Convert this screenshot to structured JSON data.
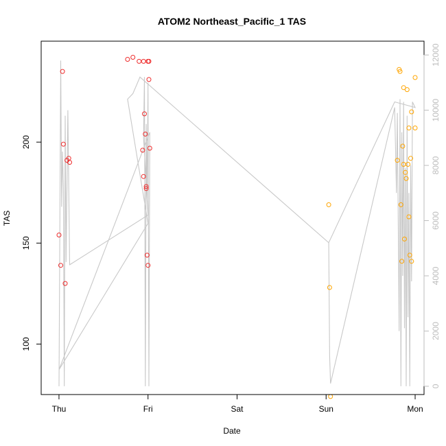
{
  "chart_data": {
    "type": "scatter",
    "title": "ATOM2 Northeast_Pacific_1 TAS",
    "xlabel": "Date",
    "ylabel": "TAS",
    "x_ticks": [
      "Thu",
      "Fri",
      "Sat",
      "Sun",
      "Mon"
    ],
    "x_range_days": [
      -0.2,
      4.1
    ],
    "ylim": [
      75,
      250
    ],
    "y_ticks": [
      100,
      150,
      200
    ],
    "y2lim": [
      -300,
      12500
    ],
    "y2_ticks": [
      0,
      2000,
      4000,
      6000,
      8000,
      10000,
      12000
    ],
    "y2_color": "#bdbdbd",
    "grid": false,
    "series": [
      {
        "color": "#ee2c2c",
        "marker": "open-circle",
        "x": [
          0.0,
          0.02,
          0.04,
          0.05,
          0.07,
          0.09,
          0.11,
          0.12,
          0.94,
          0.99,
          0.98,
          0.95,
          0.96,
          0.97,
          0.98,
          1.0,
          1.01,
          1.01,
          1.02
        ],
        "y": [
          154,
          139,
          235,
          199,
          130,
          191,
          192,
          190,
          196,
          144,
          178,
          183,
          214,
          204,
          177,
          139,
          231,
          240,
          197
        ]
      },
      {
        "color": "#ee2c2c",
        "marker": "open-circle",
        "x": [
          0.77,
          0.83,
          0.9,
          0.95,
          1.0
        ],
        "y": [
          241,
          242,
          240,
          240,
          240
        ]
      },
      {
        "color": "#ffa500",
        "marker": "open-circle",
        "x": [
          3.03,
          3.04,
          3.05,
          3.8,
          3.82,
          3.83,
          3.84,
          3.85,
          3.86,
          3.87,
          3.87,
          3.88,
          3.89,
          3.9,
          3.91,
          3.92,
          3.93,
          3.94,
          3.95,
          3.96,
          4.0
        ],
        "y": [
          169,
          128,
          74,
          191,
          236,
          235,
          169,
          141,
          198,
          227,
          189,
          152,
          185,
          182,
          226,
          189,
          163,
          144,
          192,
          215,
          207
        ]
      },
      {
        "color": "#ffa500",
        "marker": "open-circle",
        "x": [
          3.93,
          3.96,
          4.0
        ],
        "y": [
          207,
          141,
          232
        ]
      }
    ],
    "secondary_line": {
      "color": "#c8c8c8",
      "x": [
        0.0,
        0.02,
        0.03,
        0.04,
        0.05,
        0.06,
        0.07,
        0.08,
        0.1,
        0.12,
        1.0,
        0.95,
        0.96,
        0.97,
        0.98,
        0.99,
        1.0,
        1.01,
        1.02,
        0.0,
        1.0,
        0.77,
        0.83,
        0.91,
        3.03,
        3.04,
        3.05,
        3.77,
        3.79,
        3.8,
        3.82,
        3.83,
        3.84,
        3.85,
        3.86,
        3.87,
        3.88,
        3.89,
        3.9,
        3.91,
        3.92,
        3.93,
        3.94,
        3.95,
        3.96,
        3.97,
        4.0,
        3.77,
        3.03
      ],
      "y": [
        0,
        11800,
        6500,
        8500,
        7200,
        0,
        9800,
        4500,
        10000,
        4400,
        6200,
        9000,
        11200,
        0,
        9500,
        6800,
        11000,
        0,
        9200,
        600,
        5900,
        10400,
        10600,
        11200,
        5200,
        1100,
        100,
        10100,
        7000,
        9900,
        2000,
        10400,
        0,
        9200,
        4000,
        10300,
        2100,
        7900,
        0,
        9800,
        2500,
        7000,
        0,
        8000,
        3800,
        10300,
        10100,
        10300,
        5200
      ]
    }
  }
}
